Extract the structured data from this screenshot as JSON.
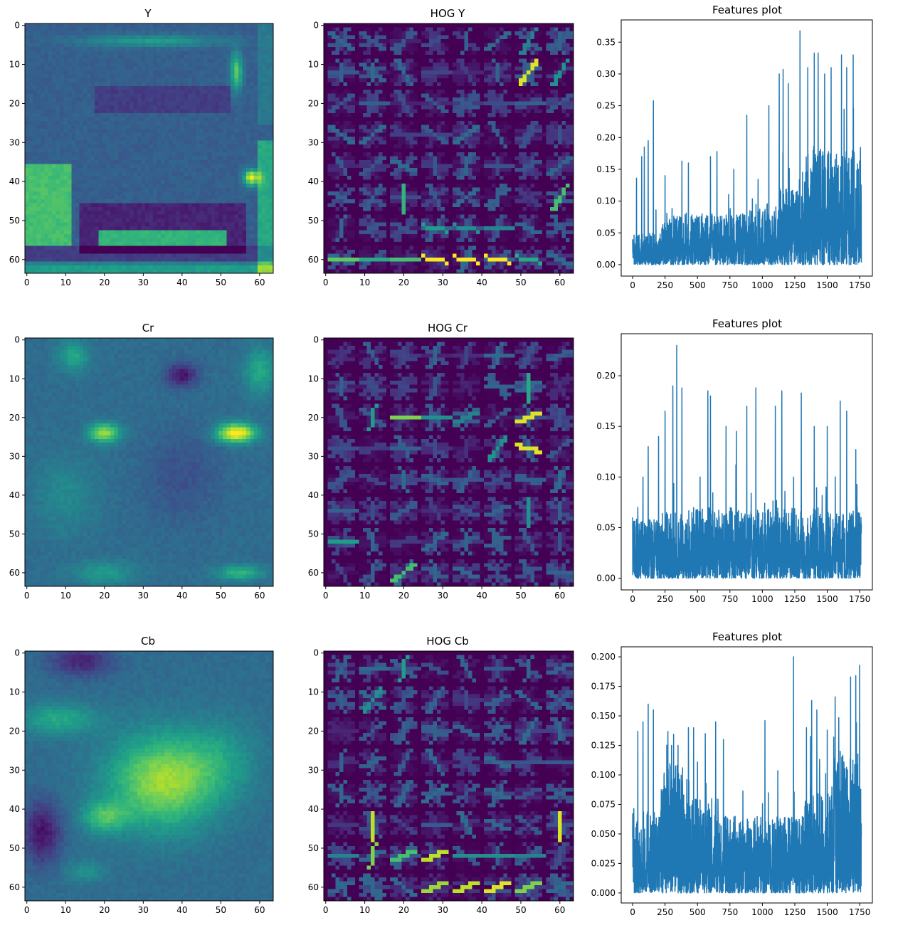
{
  "colors": {
    "line": "#1f77b4",
    "viridis": [
      "#440154",
      "#482878",
      "#3e4a89",
      "#31688e",
      "#26828e",
      "#1f9e89",
      "#35b779",
      "#6ece58",
      "#b5de2b",
      "#fde725"
    ]
  },
  "panels": [
    {
      "image": {
        "title": "Y",
        "kind": "image"
      },
      "hog": {
        "title": "HOG Y",
        "kind": "hog"
      },
      "features": {
        "title": "Features plot"
      }
    },
    {
      "image": {
        "title": "Cr",
        "kind": "image"
      },
      "hog": {
        "title": "HOG Cr",
        "kind": "hog"
      },
      "features": {
        "title": "Features plot"
      }
    },
    {
      "image": {
        "title": "Cb",
        "kind": "image"
      },
      "hog": {
        "title": "HOG Cb",
        "kind": "hog"
      },
      "features": {
        "title": "Features plot"
      }
    }
  ],
  "image_axes": {
    "xticks": [
      "0",
      "10",
      "20",
      "30",
      "40",
      "50",
      "60"
    ],
    "yticks": [
      "0",
      "10",
      "20",
      "30",
      "40",
      "50",
      "60"
    ],
    "xlim": [
      -0.5,
      63.5
    ],
    "ylim": [
      63.5,
      -0.5
    ]
  },
  "chart_data": [
    {
      "type": "line",
      "title": "Features plot",
      "xlim": [
        -88,
        1848
      ],
      "ylim": [
        -0.018,
        0.385
      ],
      "xticks": [
        "0",
        "250",
        "500",
        "750",
        "1000",
        "1250",
        "1500",
        "1750"
      ],
      "yticks": [
        "0.00",
        "0.05",
        "0.10",
        "0.15",
        "0.20",
        "0.25",
        "0.30",
        "0.35"
      ],
      "ytick_values": [
        0,
        0.05,
        0.1,
        0.15,
        0.2,
        0.25,
        0.3,
        0.35
      ],
      "n_points": 1764,
      "series": [
        {
          "peaks": [
            {
              "x": 0,
              "y": 0.04
            },
            {
              "x": 30,
              "y": 0.136
            },
            {
              "x": 70,
              "y": 0.17
            },
            {
              "x": 90,
              "y": 0.185
            },
            {
              "x": 120,
              "y": 0.195
            },
            {
              "x": 160,
              "y": 0.258
            },
            {
              "x": 250,
              "y": 0.14
            },
            {
              "x": 380,
              "y": 0.163
            },
            {
              "x": 430,
              "y": 0.16
            },
            {
              "x": 600,
              "y": 0.17
            },
            {
              "x": 650,
              "y": 0.178
            },
            {
              "x": 780,
              "y": 0.15
            },
            {
              "x": 880,
              "y": 0.235
            },
            {
              "x": 1050,
              "y": 0.25
            },
            {
              "x": 1130,
              "y": 0.3
            },
            {
              "x": 1160,
              "y": 0.307
            },
            {
              "x": 1200,
              "y": 0.285
            },
            {
              "x": 1290,
              "y": 0.368
            },
            {
              "x": 1350,
              "y": 0.31
            },
            {
              "x": 1400,
              "y": 0.333
            },
            {
              "x": 1430,
              "y": 0.333
            },
            {
              "x": 1480,
              "y": 0.3
            },
            {
              "x": 1530,
              "y": 0.31
            },
            {
              "x": 1610,
              "y": 0.33
            },
            {
              "x": 1650,
              "y": 0.31
            },
            {
              "x": 1700,
              "y": 0.33
            },
            {
              "x": 1760,
              "y": 0.06
            }
          ],
          "noise_max": [
            0.05,
            0.08,
            0.08,
            0.08,
            0.09,
            0.12,
            0.18,
            0.18
          ]
        }
      ]
    },
    {
      "type": "line",
      "title": "Features plot",
      "xlim": [
        -88,
        1848
      ],
      "ylim": [
        -0.0115,
        0.2415
      ],
      "xticks": [
        "0",
        "250",
        "500",
        "750",
        "1000",
        "1250",
        "1500",
        "1750"
      ],
      "yticks": [
        "0.00",
        "0.05",
        "0.10",
        "0.15",
        "0.20"
      ],
      "ytick_values": [
        0,
        0.05,
        0.1,
        0.15,
        0.2
      ],
      "n_points": 1764,
      "series": [
        {
          "peaks": [
            {
              "x": 0,
              "y": 0.06
            },
            {
              "x": 40,
              "y": 0.07
            },
            {
              "x": 80,
              "y": 0.1
            },
            {
              "x": 120,
              "y": 0.13
            },
            {
              "x": 200,
              "y": 0.14
            },
            {
              "x": 250,
              "y": 0.165
            },
            {
              "x": 310,
              "y": 0.19
            },
            {
              "x": 340,
              "y": 0.23
            },
            {
              "x": 380,
              "y": 0.188
            },
            {
              "x": 520,
              "y": 0.1
            },
            {
              "x": 580,
              "y": 0.185
            },
            {
              "x": 600,
              "y": 0.18
            },
            {
              "x": 720,
              "y": 0.15
            },
            {
              "x": 800,
              "y": 0.145
            },
            {
              "x": 880,
              "y": 0.17
            },
            {
              "x": 950,
              "y": 0.188
            },
            {
              "x": 1100,
              "y": 0.17
            },
            {
              "x": 1150,
              "y": 0.185
            },
            {
              "x": 1300,
              "y": 0.183
            },
            {
              "x": 1400,
              "y": 0.15
            },
            {
              "x": 1500,
              "y": 0.15
            },
            {
              "x": 1600,
              "y": 0.175
            },
            {
              "x": 1650,
              "y": 0.165
            },
            {
              "x": 1720,
              "y": 0.127
            },
            {
              "x": 1760,
              "y": 0.06
            }
          ],
          "noise_max": [
            0.06,
            0.065,
            0.07,
            0.07,
            0.07,
            0.07,
            0.07,
            0.065
          ]
        }
      ]
    },
    {
      "type": "line",
      "title": "Features plot",
      "xlim": [
        -88,
        1848
      ],
      "ylim": [
        -0.0085,
        0.2085
      ],
      "xticks": [
        "0",
        "250",
        "500",
        "750",
        "1000",
        "1250",
        "1500",
        "1750"
      ],
      "yticks": [
        "0.000",
        "0.025",
        "0.050",
        "0.075",
        "0.100",
        "0.125",
        "0.150",
        "0.175",
        "0.200"
      ],
      "ytick_values": [
        0,
        0.025,
        0.05,
        0.075,
        0.1,
        0.125,
        0.15,
        0.175,
        0.2
      ],
      "n_points": 1764,
      "series": [
        {
          "peaks": [
            {
              "x": 0,
              "y": 0.047
            },
            {
              "x": 40,
              "y": 0.137
            },
            {
              "x": 80,
              "y": 0.145
            },
            {
              "x": 120,
              "y": 0.16
            },
            {
              "x": 160,
              "y": 0.155
            },
            {
              "x": 300,
              "y": 0.125
            },
            {
              "x": 350,
              "y": 0.125
            },
            {
              "x": 430,
              "y": 0.14
            },
            {
              "x": 470,
              "y": 0.14
            },
            {
              "x": 560,
              "y": 0.135
            },
            {
              "x": 640,
              "y": 0.145
            },
            {
              "x": 700,
              "y": 0.13
            },
            {
              "x": 1020,
              "y": 0.146
            },
            {
              "x": 1240,
              "y": 0.2
            },
            {
              "x": 1340,
              "y": 0.14
            },
            {
              "x": 1380,
              "y": 0.163
            },
            {
              "x": 1420,
              "y": 0.155
            },
            {
              "x": 1500,
              "y": 0.138
            },
            {
              "x": 1550,
              "y": 0.132
            },
            {
              "x": 1600,
              "y": 0.12
            },
            {
              "x": 1680,
              "y": 0.183
            },
            {
              "x": 1720,
              "y": 0.184
            },
            {
              "x": 1750,
              "y": 0.193
            }
          ],
          "noise_max": [
            0.07,
            0.11,
            0.08,
            0.065,
            0.065,
            0.065,
            0.085,
            0.12
          ]
        }
      ]
    }
  ]
}
